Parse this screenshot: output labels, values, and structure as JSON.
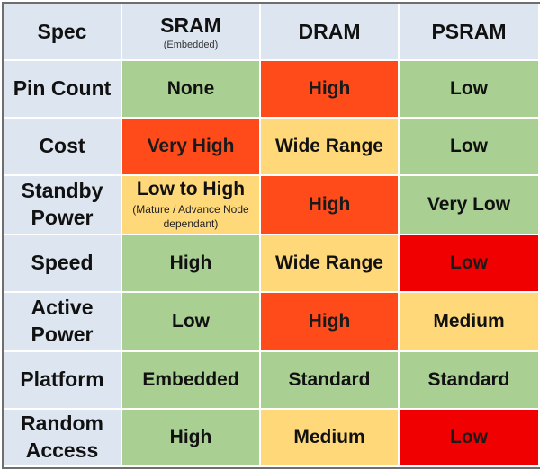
{
  "header": {
    "spec": "Spec",
    "sram": "SRAM",
    "sram_sub": "(Embedded)",
    "dram": "DRAM",
    "psram": "PSRAM"
  },
  "rows": [
    {
      "label": "Pin Count",
      "sram": "None",
      "dram": "High",
      "psram": "Low"
    },
    {
      "label": "Cost",
      "sram": "Very High",
      "dram": "Wide Range",
      "psram": "Low"
    },
    {
      "label": "Standby Power",
      "sram": "Low to High",
      "sram_note": "(Mature / Advance Node dependant)",
      "dram": "High",
      "psram": "Very Low"
    },
    {
      "label": "Speed",
      "sram": "High",
      "dram": "Wide Range",
      "psram": "Low"
    },
    {
      "label": "Active Power",
      "sram": "Low",
      "dram": "High",
      "psram": "Medium"
    },
    {
      "label": "Platform",
      "sram": "Embedded",
      "dram": "Standard",
      "psram": "Standard"
    },
    {
      "label": "Random Access",
      "sram": "High",
      "dram": "Medium",
      "psram": "Low"
    }
  ],
  "colors": {
    "green": "#a9cf93",
    "yellow": "#ffd87a",
    "orange": "#ff4a1a",
    "red": "#f00000",
    "header": "#dde6f0"
  }
}
